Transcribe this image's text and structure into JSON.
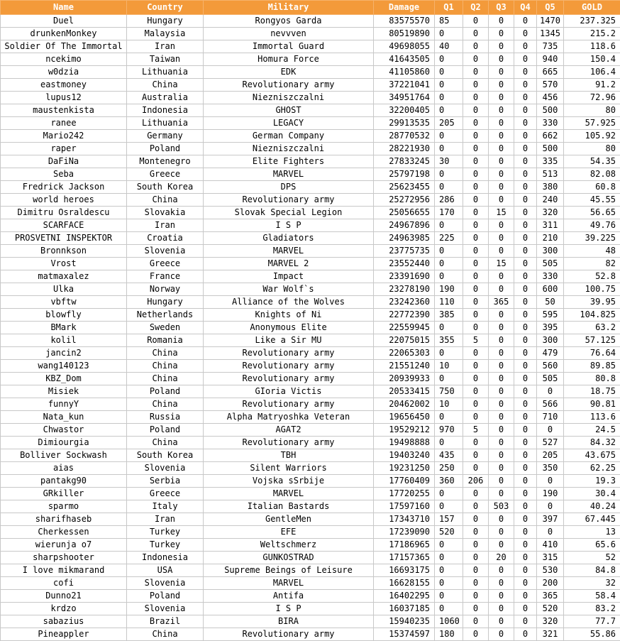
{
  "table": {
    "headers": [
      "Name",
      "Country",
      "Military",
      "Damage",
      "Q1",
      "Q2",
      "Q3",
      "Q4",
      "Q5",
      "GOLD"
    ],
    "rows": [
      [
        "Duel",
        "Hungary",
        "Rongyos Garda",
        "83575570",
        "85",
        "0",
        "0",
        "0",
        "1470",
        "237.325"
      ],
      [
        "drunkenMonkey",
        "Malaysia",
        "nevvven",
        "80519890",
        "0",
        "0",
        "0",
        "0",
        "1345",
        "215.2"
      ],
      [
        "Soldier Of The Immortal",
        "Iran",
        "Immortal Guard",
        "49698055",
        "40",
        "0",
        "0",
        "0",
        "735",
        "118.6"
      ],
      [
        "ncekimo",
        "Taiwan",
        "Homura Force",
        "41643505",
        "0",
        "0",
        "0",
        "0",
        "940",
        "150.4"
      ],
      [
        "w0dzia",
        "Lithuania",
        "EDK",
        "41105860",
        "0",
        "0",
        "0",
        "0",
        "665",
        "106.4"
      ],
      [
        "eastmoney",
        "China",
        "Revolutionary army",
        "37221041",
        "0",
        "0",
        "0",
        "0",
        "570",
        "91.2"
      ],
      [
        "lupus12",
        "Australia",
        "Niezniszczalni",
        "34951764",
        "0",
        "0",
        "0",
        "0",
        "456",
        "72.96"
      ],
      [
        "maustenkista",
        "Indonesia",
        "GHOST",
        "32200405",
        "0",
        "0",
        "0",
        "0",
        "500",
        "80"
      ],
      [
        "ranee",
        "Lithuania",
        "LEGACY",
        "29913535",
        "205",
        "0",
        "0",
        "0",
        "330",
        "57.925"
      ],
      [
        "Mario242",
        "Germany",
        "German Company",
        "28770532",
        "0",
        "0",
        "0",
        "0",
        "662",
        "105.92"
      ],
      [
        "raper",
        "Poland",
        "Niezniszczalni",
        "28221930",
        "0",
        "0",
        "0",
        "0",
        "500",
        "80"
      ],
      [
        "DaFiNa",
        "Montenegro",
        "Elite Fighters",
        "27833245",
        "30",
        "0",
        "0",
        "0",
        "335",
        "54.35"
      ],
      [
        "Seba",
        "Greece",
        "MARVEL",
        "25797198",
        "0",
        "0",
        "0",
        "0",
        "513",
        "82.08"
      ],
      [
        "Fredrick Jackson",
        "South Korea",
        "DPS",
        "25623455",
        "0",
        "0",
        "0",
        "0",
        "380",
        "60.8"
      ],
      [
        "world heroes",
        "China",
        "Revolutionary army",
        "25272956",
        "286",
        "0",
        "0",
        "0",
        "240",
        "45.55"
      ],
      [
        "Dimitru Osraldescu",
        "Slovakia",
        "Slovak Special Legion",
        "25056655",
        "170",
        "0",
        "15",
        "0",
        "320",
        "56.65"
      ],
      [
        "SCARFACE",
        "Iran",
        "I S P",
        "24967896",
        "0",
        "0",
        "0",
        "0",
        "311",
        "49.76"
      ],
      [
        "PROSVETNI INSPEKTOR",
        "Croatia",
        "Gladiators",
        "24963985",
        "225",
        "0",
        "0",
        "0",
        "210",
        "39.225"
      ],
      [
        "Bronnkson",
        "Slovenia",
        "MARVEL",
        "23775735",
        "0",
        "0",
        "0",
        "0",
        "300",
        "48"
      ],
      [
        "Vrost",
        "Greece",
        "MARVEL 2",
        "23552440",
        "0",
        "0",
        "15",
        "0",
        "505",
        "82"
      ],
      [
        "matmaxalez",
        "France",
        "Impact",
        "23391690",
        "0",
        "0",
        "0",
        "0",
        "330",
        "52.8"
      ],
      [
        "Ulka",
        "Norway",
        "War Wolf`s",
        "23278190",
        "190",
        "0",
        "0",
        "0",
        "600",
        "100.75"
      ],
      [
        "vbftw",
        "Hungary",
        "Alliance of the Wolves",
        "23242360",
        "110",
        "0",
        "365",
        "0",
        "50",
        "39.95"
      ],
      [
        "blowfly",
        "Netherlands",
        "Knights of Ni",
        "22772390",
        "385",
        "0",
        "0",
        "0",
        "595",
        "104.825"
      ],
      [
        "BMark",
        "Sweden",
        "Anonymous Elite",
        "22559945",
        "0",
        "0",
        "0",
        "0",
        "395",
        "63.2"
      ],
      [
        "kolil",
        "Romania",
        "Like a Sir MU",
        "22075015",
        "355",
        "5",
        "0",
        "0",
        "300",
        "57.125"
      ],
      [
        "jancin2",
        "China",
        "Revolutionary army",
        "22065303",
        "0",
        "0",
        "0",
        "0",
        "479",
        "76.64"
      ],
      [
        "wang140123",
        "China",
        "Revolutionary army",
        "21551240",
        "10",
        "0",
        "0",
        "0",
        "560",
        "89.85"
      ],
      [
        "KBZ_Dom",
        "China",
        "Revolutionary army",
        "20939933",
        "0",
        "0",
        "0",
        "0",
        "505",
        "80.8"
      ],
      [
        "Misiek",
        "Poland",
        "GIoria Victis",
        "20533415",
        "750",
        "0",
        "0",
        "0",
        "0",
        "18.75"
      ],
      [
        "funnyY",
        "China",
        "Revolutionary army",
        "20462002",
        "10",
        "0",
        "0",
        "0",
        "566",
        "90.81"
      ],
      [
        "Nata_kun",
        "Russia",
        "Alpha Matryoshka Veteran",
        "19656450",
        "0",
        "0",
        "0",
        "0",
        "710",
        "113.6"
      ],
      [
        "Chwastor",
        "Poland",
        "AGAT2",
        "19529212",
        "970",
        "5",
        "0",
        "0",
        "0",
        "24.5"
      ],
      [
        "Dimiourgia",
        "China",
        "Revolutionary army",
        "19498888",
        "0",
        "0",
        "0",
        "0",
        "527",
        "84.32"
      ],
      [
        "Bolliver Sockwash",
        "South Korea",
        "TBH",
        "19403240",
        "435",
        "0",
        "0",
        "0",
        "205",
        "43.675"
      ],
      [
        "aias",
        "Slovenia",
        "Silent Warriors",
        "19231250",
        "250",
        "0",
        "0",
        "0",
        "350",
        "62.25"
      ],
      [
        "pantakg90",
        "Serbia",
        "Vojska sSrbije",
        "17760409",
        "360",
        "206",
        "0",
        "0",
        "0",
        "19.3"
      ],
      [
        "GRkiller",
        "Greece",
        "MARVEL",
        "17720255",
        "0",
        "0",
        "0",
        "0",
        "190",
        "30.4"
      ],
      [
        "sparmo",
        "Italy",
        "Italian Bastards",
        "17597160",
        "0",
        "0",
        "503",
        "0",
        "0",
        "40.24"
      ],
      [
        "sharifhaseb",
        "Iran",
        "GentleMen",
        "17343710",
        "157",
        "0",
        "0",
        "0",
        "397",
        "67.445"
      ],
      [
        "Cherkessen",
        "Turkey",
        "EFE",
        "17239090",
        "520",
        "0",
        "0",
        "0",
        "0",
        "13"
      ],
      [
        "wierunja o7",
        "Turkey",
        "Weltschmerz",
        "17186965",
        "0",
        "0",
        "0",
        "0",
        "410",
        "65.6"
      ],
      [
        "sharpshooter",
        "Indonesia",
        "GUNKOSTRAD",
        "17157365",
        "0",
        "0",
        "20",
        "0",
        "315",
        "52"
      ],
      [
        "I love mikmarand",
        "USA",
        "Supreme Beings of Leisure",
        "16693175",
        "0",
        "0",
        "0",
        "0",
        "530",
        "84.8"
      ],
      [
        "cofi",
        "Slovenia",
        "MARVEL",
        "16628155",
        "0",
        "0",
        "0",
        "0",
        "200",
        "32"
      ],
      [
        "Dunno21",
        "Poland",
        "Antifa",
        "16402295",
        "0",
        "0",
        "0",
        "0",
        "365",
        "58.4"
      ],
      [
        "krdzo",
        "Slovenia",
        "I S P",
        "16037185",
        "0",
        "0",
        "0",
        "0",
        "520",
        "83.2"
      ],
      [
        "sabazius",
        "Brazil",
        "BIRA",
        "15940235",
        "1060",
        "0",
        "0",
        "0",
        "320",
        "77.7"
      ],
      [
        "Pineappler",
        "China",
        "Revolutionary army",
        "15374597",
        "180",
        "0",
        "0",
        "0",
        "321",
        "55.86"
      ]
    ]
  }
}
